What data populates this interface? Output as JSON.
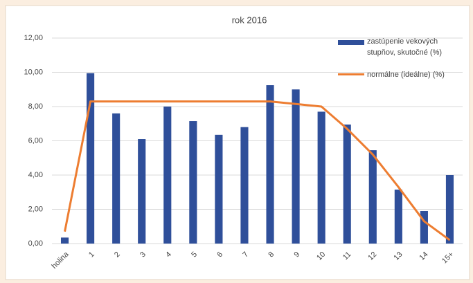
{
  "chart_data": {
    "type": "bar",
    "title": "rok 2016",
    "categories": [
      "holina",
      "1",
      "2",
      "3",
      "4",
      "5",
      "6",
      "7",
      "8",
      "9",
      "10",
      "11",
      "12",
      "13",
      "14",
      "15+"
    ],
    "series": [
      {
        "name": "zastúpenie vekových stupňov, skutočné (%)",
        "type": "bar",
        "color": "#2f4f9a",
        "values": [
          0.35,
          9.95,
          7.6,
          6.1,
          8.0,
          7.15,
          6.35,
          6.8,
          9.25,
          9.0,
          7.7,
          6.95,
          5.45,
          3.15,
          1.9,
          4.0
        ]
      },
      {
        "name": "normálne (ideálne) (%)",
        "type": "line",
        "color": "#ed7d31",
        "values": [
          0.7,
          8.3,
          8.3,
          8.3,
          8.3,
          8.3,
          8.3,
          8.3,
          8.3,
          8.15,
          8.0,
          6.7,
          5.2,
          3.3,
          1.3,
          0.2
        ]
      }
    ],
    "ylim": [
      0,
      12
    ],
    "yticks": [
      {
        "value": 0,
        "label": "0,00"
      },
      {
        "value": 2,
        "label": "2,00"
      },
      {
        "value": 4,
        "label": "4,00"
      },
      {
        "value": 6,
        "label": "6,00"
      },
      {
        "value": 8,
        "label": "8,00"
      },
      {
        "value": 10,
        "label": "10,00"
      },
      {
        "value": 12,
        "label": "12,00"
      }
    ],
    "grid": true,
    "legend": "top-right"
  }
}
